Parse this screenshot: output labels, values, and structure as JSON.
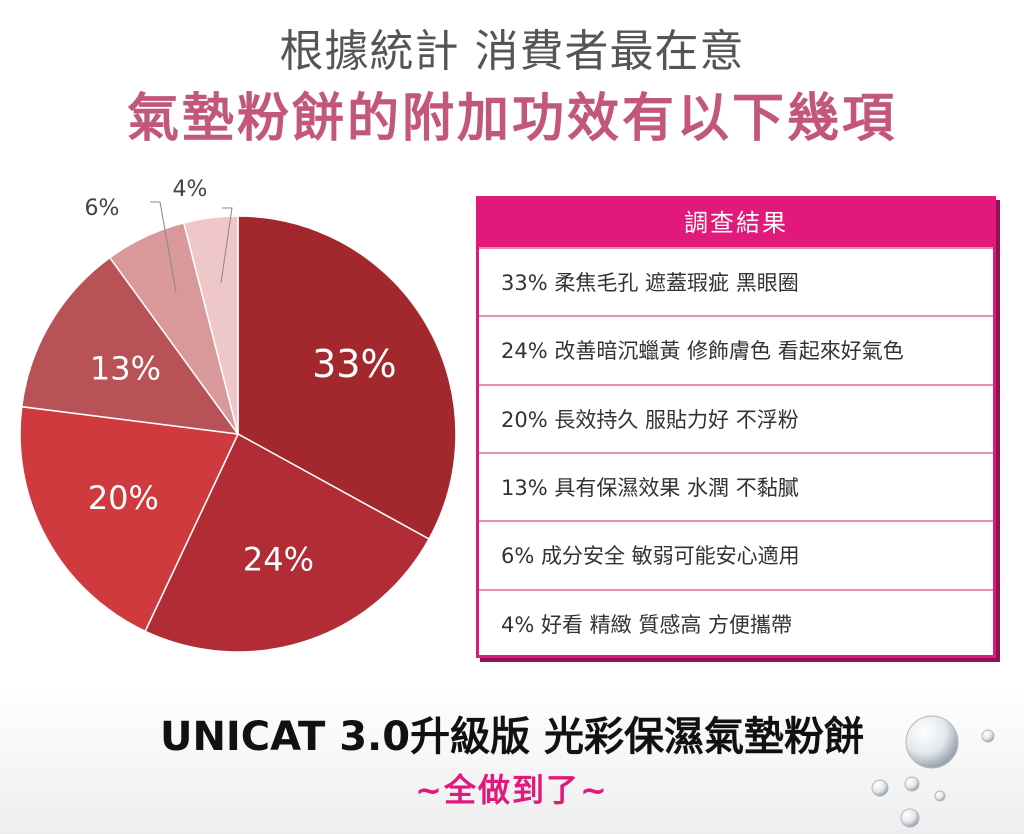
{
  "header": {
    "line1": "根據統計 消費者最在意",
    "line2": "氣墊粉餅的附加功效有以下幾項"
  },
  "chart_data": {
    "type": "pie",
    "slices": [
      {
        "label": "33%",
        "value": 33,
        "color": "#a3282d"
      },
      {
        "label": "24%",
        "value": 24,
        "color": "#b12c35"
      },
      {
        "label": "20%",
        "value": 20,
        "color": "#cf3a3e"
      },
      {
        "label": "13%",
        "value": 13,
        "color": "#b85257"
      },
      {
        "label": "6%",
        "value": 6,
        "color": "#d9989a"
      },
      {
        "label": "4%",
        "value": 4,
        "color": "#efc7c8"
      }
    ]
  },
  "results": {
    "title": "調查結果",
    "items": [
      "33% 柔焦毛孔 遮蓋瑕疵 黑眼圈",
      "24% 改善暗沉蠟黃 修飾膚色 看起來好氣色",
      "20% 長效持久 服貼力好 不浮粉",
      "13%  具有保濕效果 水潤 不黏膩",
      "6% 成分安全 敏弱可能安心適用",
      "4% 好看 精緻 質感高 方便攜帶"
    ]
  },
  "footer": {
    "brand": "UNICAT 3.0升級版 光彩保濕氣墊粉餅",
    "tagline": "~全做到了~"
  }
}
